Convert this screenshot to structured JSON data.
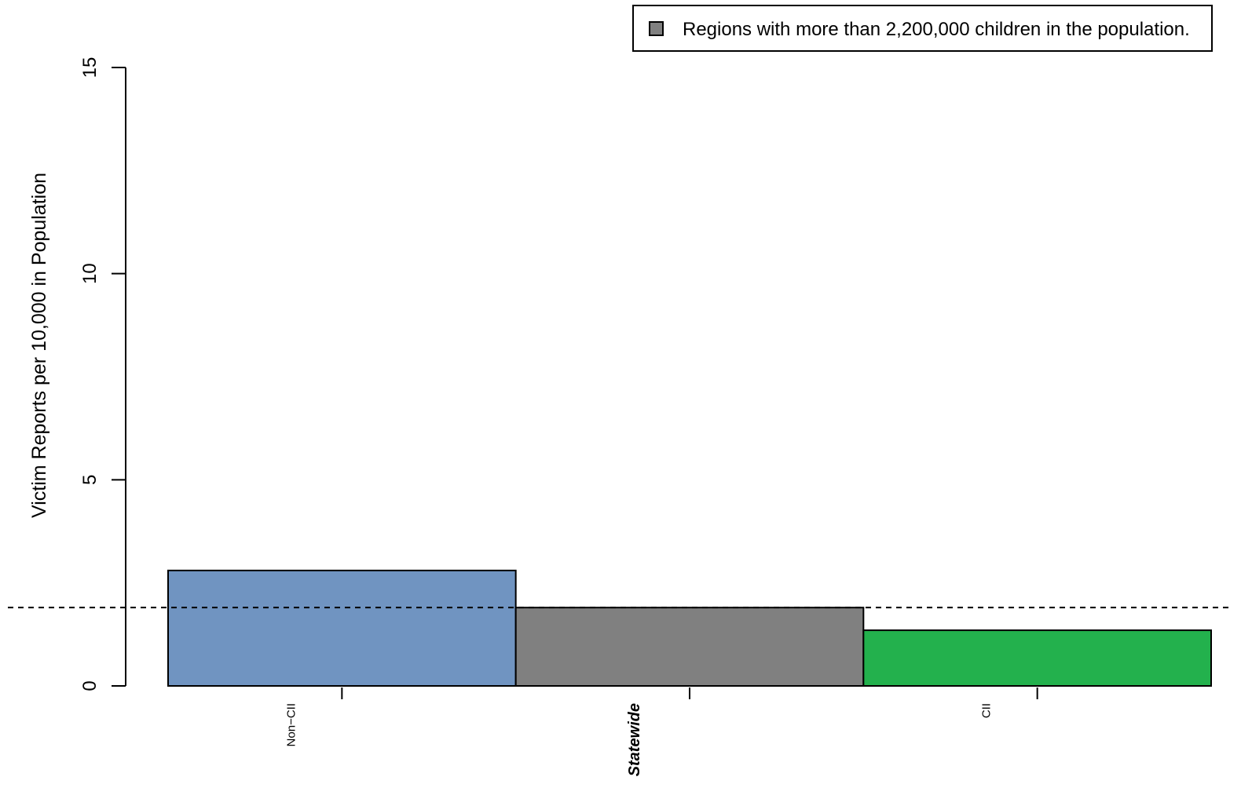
{
  "chart_data": {
    "type": "bar",
    "title": "",
    "xlabel": "",
    "ylabel": "Victim Reports per 10,000 in Population",
    "ylim": [
      0,
      15
    ],
    "yticks": [
      0,
      5,
      10,
      15
    ],
    "grid": false,
    "legend_placement": "top-right",
    "legend": [
      {
        "label": "Regions with more than 2,200,000 children in the population.",
        "color": "#808080"
      }
    ],
    "reference_line": {
      "value": 1.9,
      "style": "dashed",
      "color": "#000000"
    },
    "bars": [
      {
        "category": "Non−CII",
        "value": 2.8,
        "color": "#7094c1",
        "label_style": "normal"
      },
      {
        "category": "Statewide",
        "value": 1.9,
        "color": "#808080",
        "label_style": "bold-italic"
      },
      {
        "category": "CII",
        "value": 1.35,
        "color": "#23b14d",
        "label_style": "normal"
      }
    ]
  }
}
